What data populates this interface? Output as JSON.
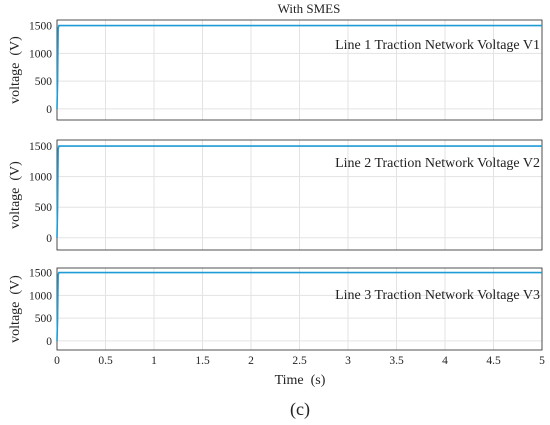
{
  "figure": {
    "title": "With SMES",
    "xlabel": "Time  (s)",
    "caption": "(c)"
  },
  "chart_data": [
    {
      "type": "line",
      "title": "With SMES",
      "ylabel": "voltage  (V)",
      "annotation": "Line 1 Traction Network Voltage V1",
      "xlim": [
        0,
        5
      ],
      "ylim": [
        -200,
        1600
      ],
      "xticks": [
        "0",
        "0.5",
        "1",
        "1.5",
        "2",
        "2.5",
        "3",
        "3.5",
        "4",
        "4.5",
        "5"
      ],
      "yticks": [
        "0",
        "500",
        "1000",
        "1500"
      ],
      "grid": true,
      "series": [
        {
          "color": "#1f9bd6",
          "x": [
            0,
            0.006,
            0.012,
            0.02,
            0.04,
            5
          ],
          "y": [
            0,
            500,
            1450,
            1500,
            1500,
            1500
          ]
        }
      ]
    },
    {
      "type": "line",
      "ylabel": "voltage  (V)",
      "annotation": "Line 2 Traction Network Voltage V2",
      "xlim": [
        0,
        5
      ],
      "ylim": [
        -200,
        1600
      ],
      "xticks": [
        "0",
        "0.5",
        "1",
        "1.5",
        "2",
        "2.5",
        "3",
        "3.5",
        "4",
        "4.5",
        "5"
      ],
      "yticks": [
        "0",
        "500",
        "1000",
        "1500"
      ],
      "grid": true,
      "series": [
        {
          "color": "#1f9bd6",
          "x": [
            0,
            0.006,
            0.012,
            0.02,
            0.04,
            5
          ],
          "y": [
            0,
            500,
            1450,
            1500,
            1500,
            1500
          ]
        }
      ]
    },
    {
      "type": "line",
      "ylabel": "voltage  (V)",
      "annotation": "Line 3 Traction Network Voltage V3",
      "xlabel": "Time  (s)",
      "xlim": [
        0,
        5
      ],
      "ylim": [
        -200,
        1600
      ],
      "xticks": [
        "0",
        "0.5",
        "1",
        "1.5",
        "2",
        "2.5",
        "3",
        "3.5",
        "4",
        "4.5",
        "5"
      ],
      "yticks": [
        "0",
        "500",
        "1000",
        "1500"
      ],
      "grid": true,
      "series": [
        {
          "color": "#1f9bd6",
          "x": [
            0,
            0.006,
            0.012,
            0.02,
            0.04,
            5
          ],
          "y": [
            0,
            500,
            1450,
            1500,
            1500,
            1500
          ]
        }
      ]
    }
  ]
}
